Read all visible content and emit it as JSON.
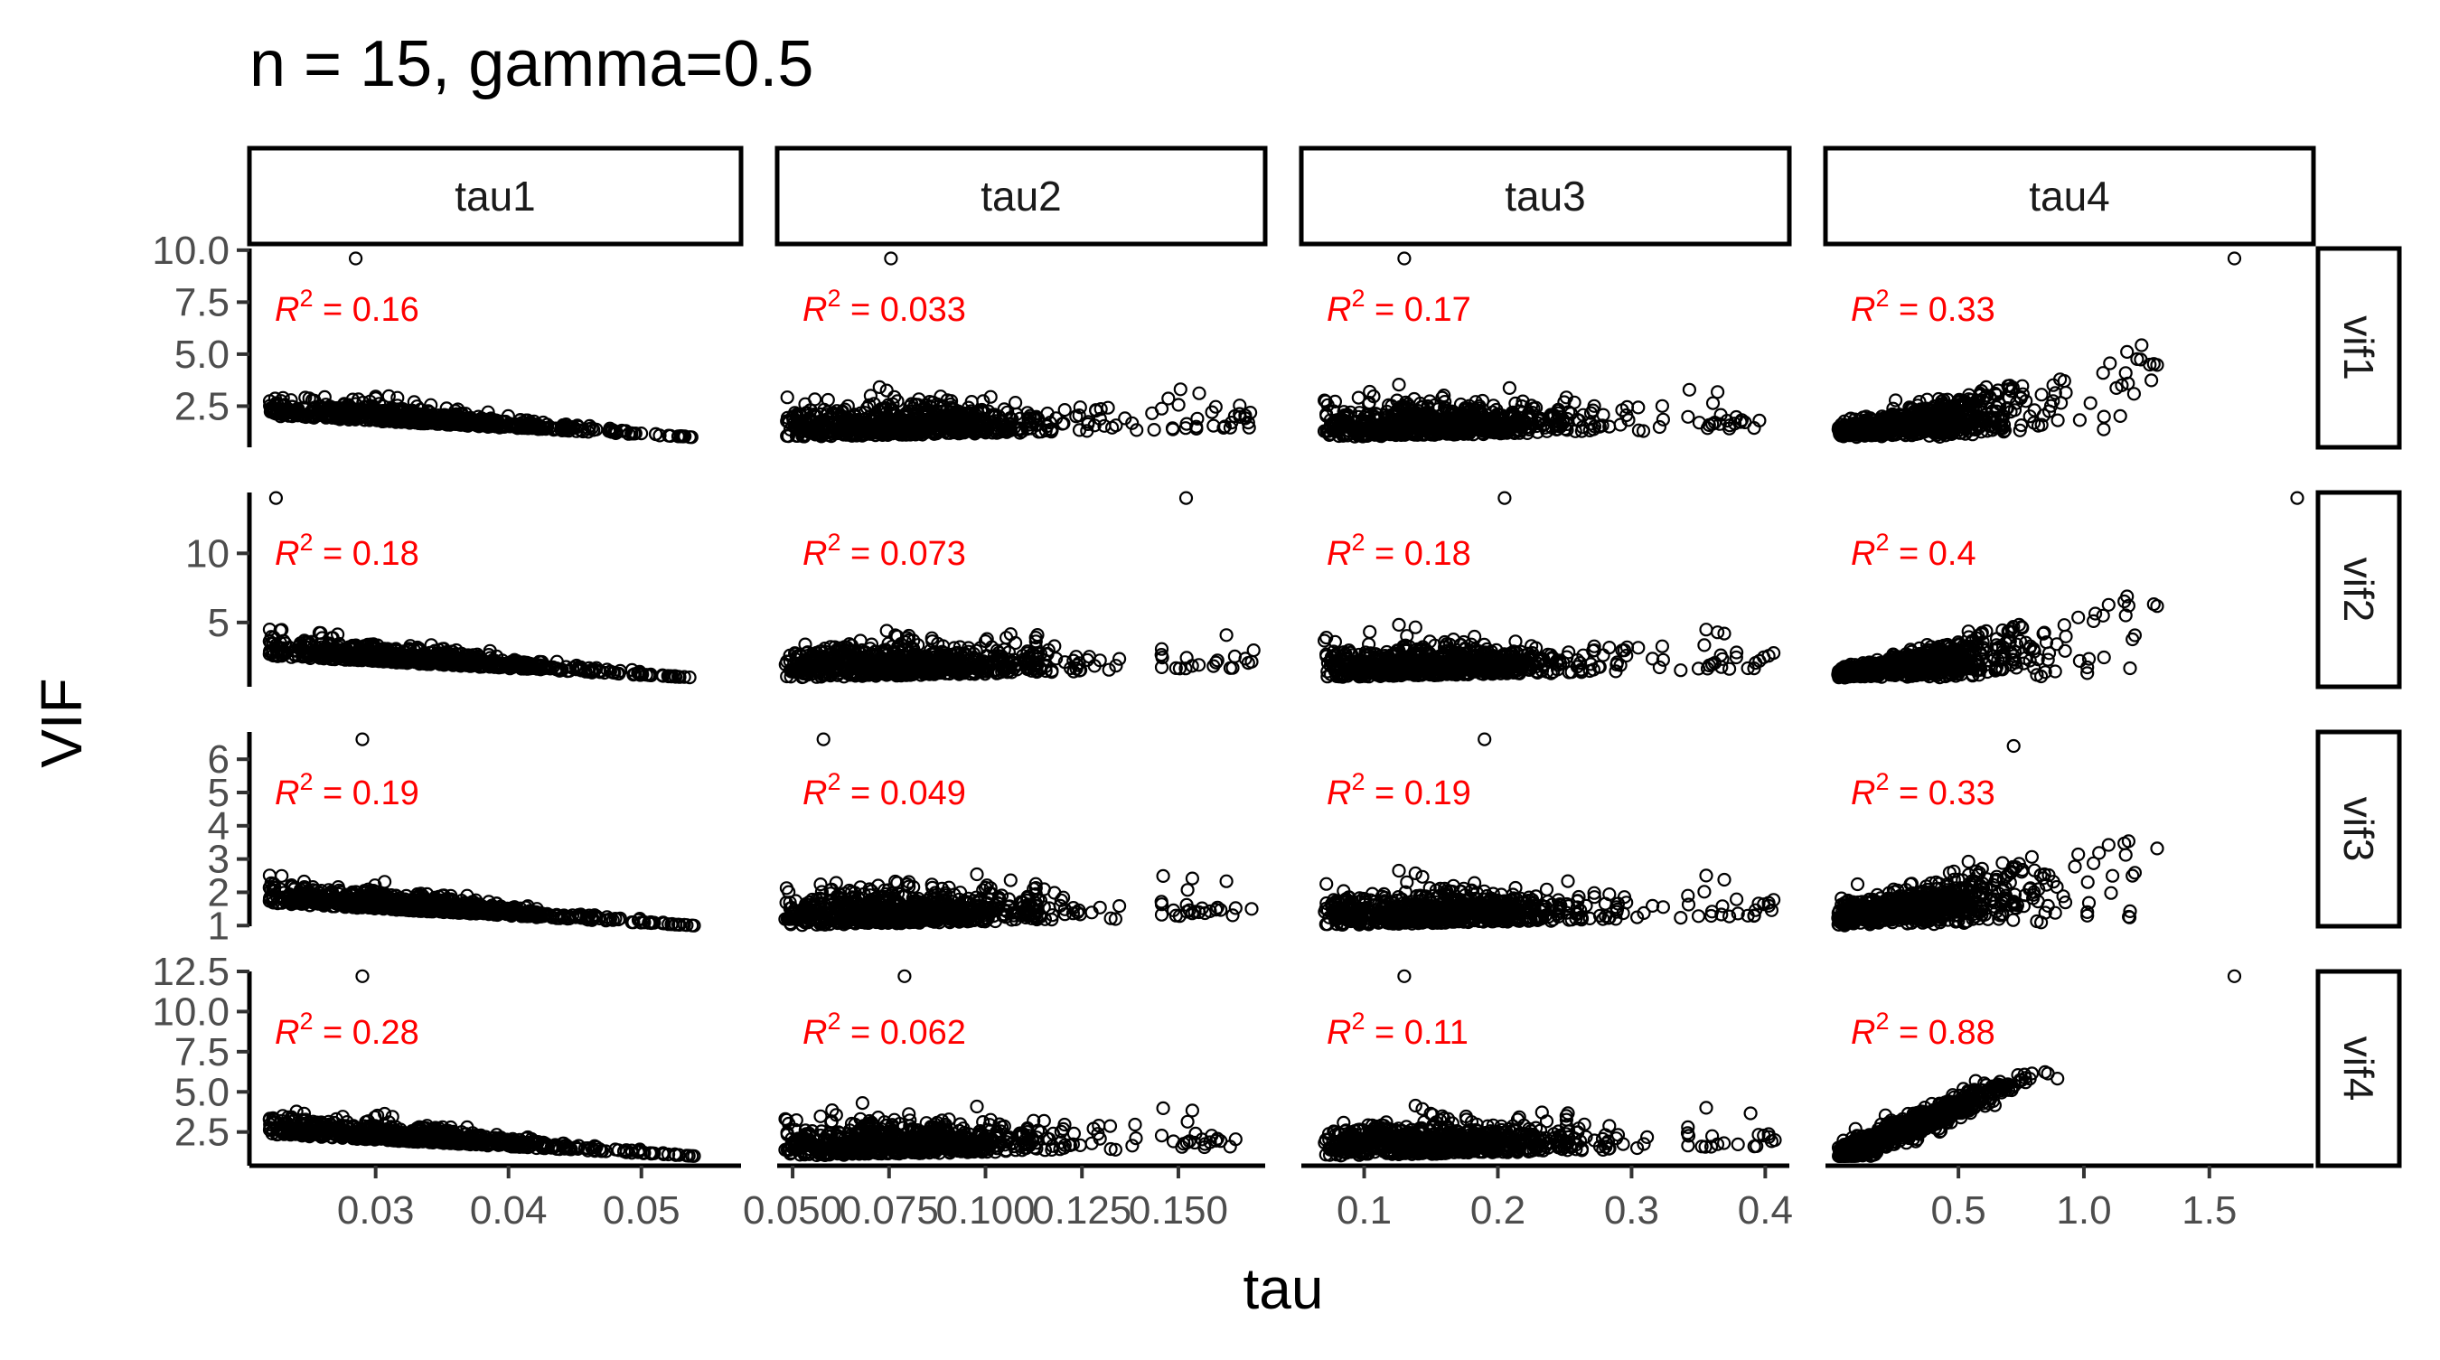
{
  "title": "n = 15, gamma=0.5",
  "xlabel": "tau",
  "ylabel": "VIF",
  "colors": {
    "point": "#000000",
    "annotation": "#ff0000",
    "strip_fill": "#ffffff",
    "axis": "#000000",
    "tick_text": "#4d4d4d"
  },
  "chart_data": {
    "type": "scatter",
    "facet_layout": "grid",
    "columns": [
      "tau1",
      "tau2",
      "tau3",
      "tau4"
    ],
    "rows": [
      "vif1",
      "vif2",
      "vif3",
      "vif4"
    ],
    "x_axes": [
      {
        "lim": [
          0.0205,
          0.0575
        ],
        "ticks": [
          0.03,
          0.04,
          0.05
        ],
        "tick_labels": [
          "0.03",
          "0.04",
          "0.05"
        ]
      },
      {
        "lim": [
          0.046,
          0.1725
        ],
        "ticks": [
          0.05,
          0.075,
          0.1,
          0.125,
          0.15
        ],
        "tick_labels": [
          "0.050",
          "0.075",
          "0.100",
          "0.125",
          "0.150"
        ]
      },
      {
        "lim": [
          0.053,
          0.418
        ],
        "ticks": [
          0.1,
          0.2,
          0.3,
          0.4
        ],
        "tick_labels": [
          "0.1",
          "0.2",
          "0.3",
          "0.4"
        ]
      },
      {
        "lim": [
          -0.03,
          1.915
        ],
        "ticks": [
          0.5,
          1.0,
          1.5
        ],
        "tick_labels": [
          "0.5",
          "1.0",
          "1.5"
        ]
      }
    ],
    "y_axes": [
      {
        "lim": [
          0.52,
          10.08
        ],
        "ticks": [
          2.5,
          5.0,
          7.5,
          10.0
        ],
        "tick_labels": [
          "2.5",
          "5.0",
          "7.5",
          "10.0"
        ]
      },
      {
        "lim": [
          0.35,
          14.4
        ],
        "ticks": [
          5,
          10
        ],
        "tick_labels": [
          "5",
          "10"
        ]
      },
      {
        "lim": [
          0.98,
          6.82
        ],
        "ticks": [
          1,
          2,
          3,
          4,
          5,
          6
        ],
        "tick_labels": [
          "1",
          "2",
          "3",
          "4",
          "5",
          "6"
        ]
      },
      {
        "lim": [
          0.4,
          12.5
        ],
        "ticks": [
          2.5,
          5.0,
          7.5,
          10.0,
          12.5
        ],
        "tick_labels": [
          "2.5",
          "5.0",
          "7.5",
          "10.0",
          "12.5"
        ]
      }
    ],
    "annotations": [
      [
        "= 0.16",
        "= 0.033",
        "= 0.17",
        "= 0.33"
      ],
      [
        "= 0.18",
        "= 0.073",
        "= 0.18",
        "= 0.4"
      ],
      [
        "= 0.19",
        "= 0.049",
        "= 0.19",
        "= 0.33"
      ],
      [
        "= 0.28",
        "= 0.062",
        "= 0.11",
        "= 0.88"
      ]
    ],
    "annotation_symbol": "R",
    "annotation_superscript": "2",
    "tau_ranges": [
      [
        0.022,
        0.056
      ],
      [
        0.048,
        0.17
      ],
      [
        0.07,
        0.41
      ],
      [
        0.02,
        1.85
      ]
    ],
    "regimes": [
      [
        "decline",
        "cloud",
        "cloud",
        "wedge"
      ],
      [
        "decline",
        "cloud",
        "cloud",
        "wedge"
      ],
      [
        "decline",
        "cloud",
        "cloud",
        "wedge"
      ],
      [
        "decline",
        "cloud",
        "cloud",
        "linear"
      ]
    ],
    "vif_ranges": [
      [
        1.0,
        9.6
      ],
      [
        1.0,
        14.0
      ],
      [
        1.0,
        6.6
      ],
      [
        1.0,
        12.2
      ]
    ],
    "outliers": [
      [
        [
          0.0285,
          9.6
        ],
        [
          0.0755,
          9.6
        ],
        [
          0.13,
          9.6
        ],
        [
          1.6,
          9.6
        ]
      ],
      [
        [
          0.0225,
          14.0
        ],
        [
          0.152,
          14.0
        ],
        [
          0.205,
          14.0
        ],
        [
          1.85,
          14.0
        ]
      ],
      [
        [
          0.029,
          6.6
        ],
        [
          0.058,
          6.6
        ],
        [
          0.19,
          6.6
        ],
        [
          0.72,
          6.4
        ]
      ],
      [
        [
          0.029,
          12.2
        ],
        [
          0.079,
          12.2
        ],
        [
          0.13,
          12.2
        ],
        [
          1.6,
          12.2
        ]
      ]
    ],
    "n_points_per_panel": 750
  }
}
